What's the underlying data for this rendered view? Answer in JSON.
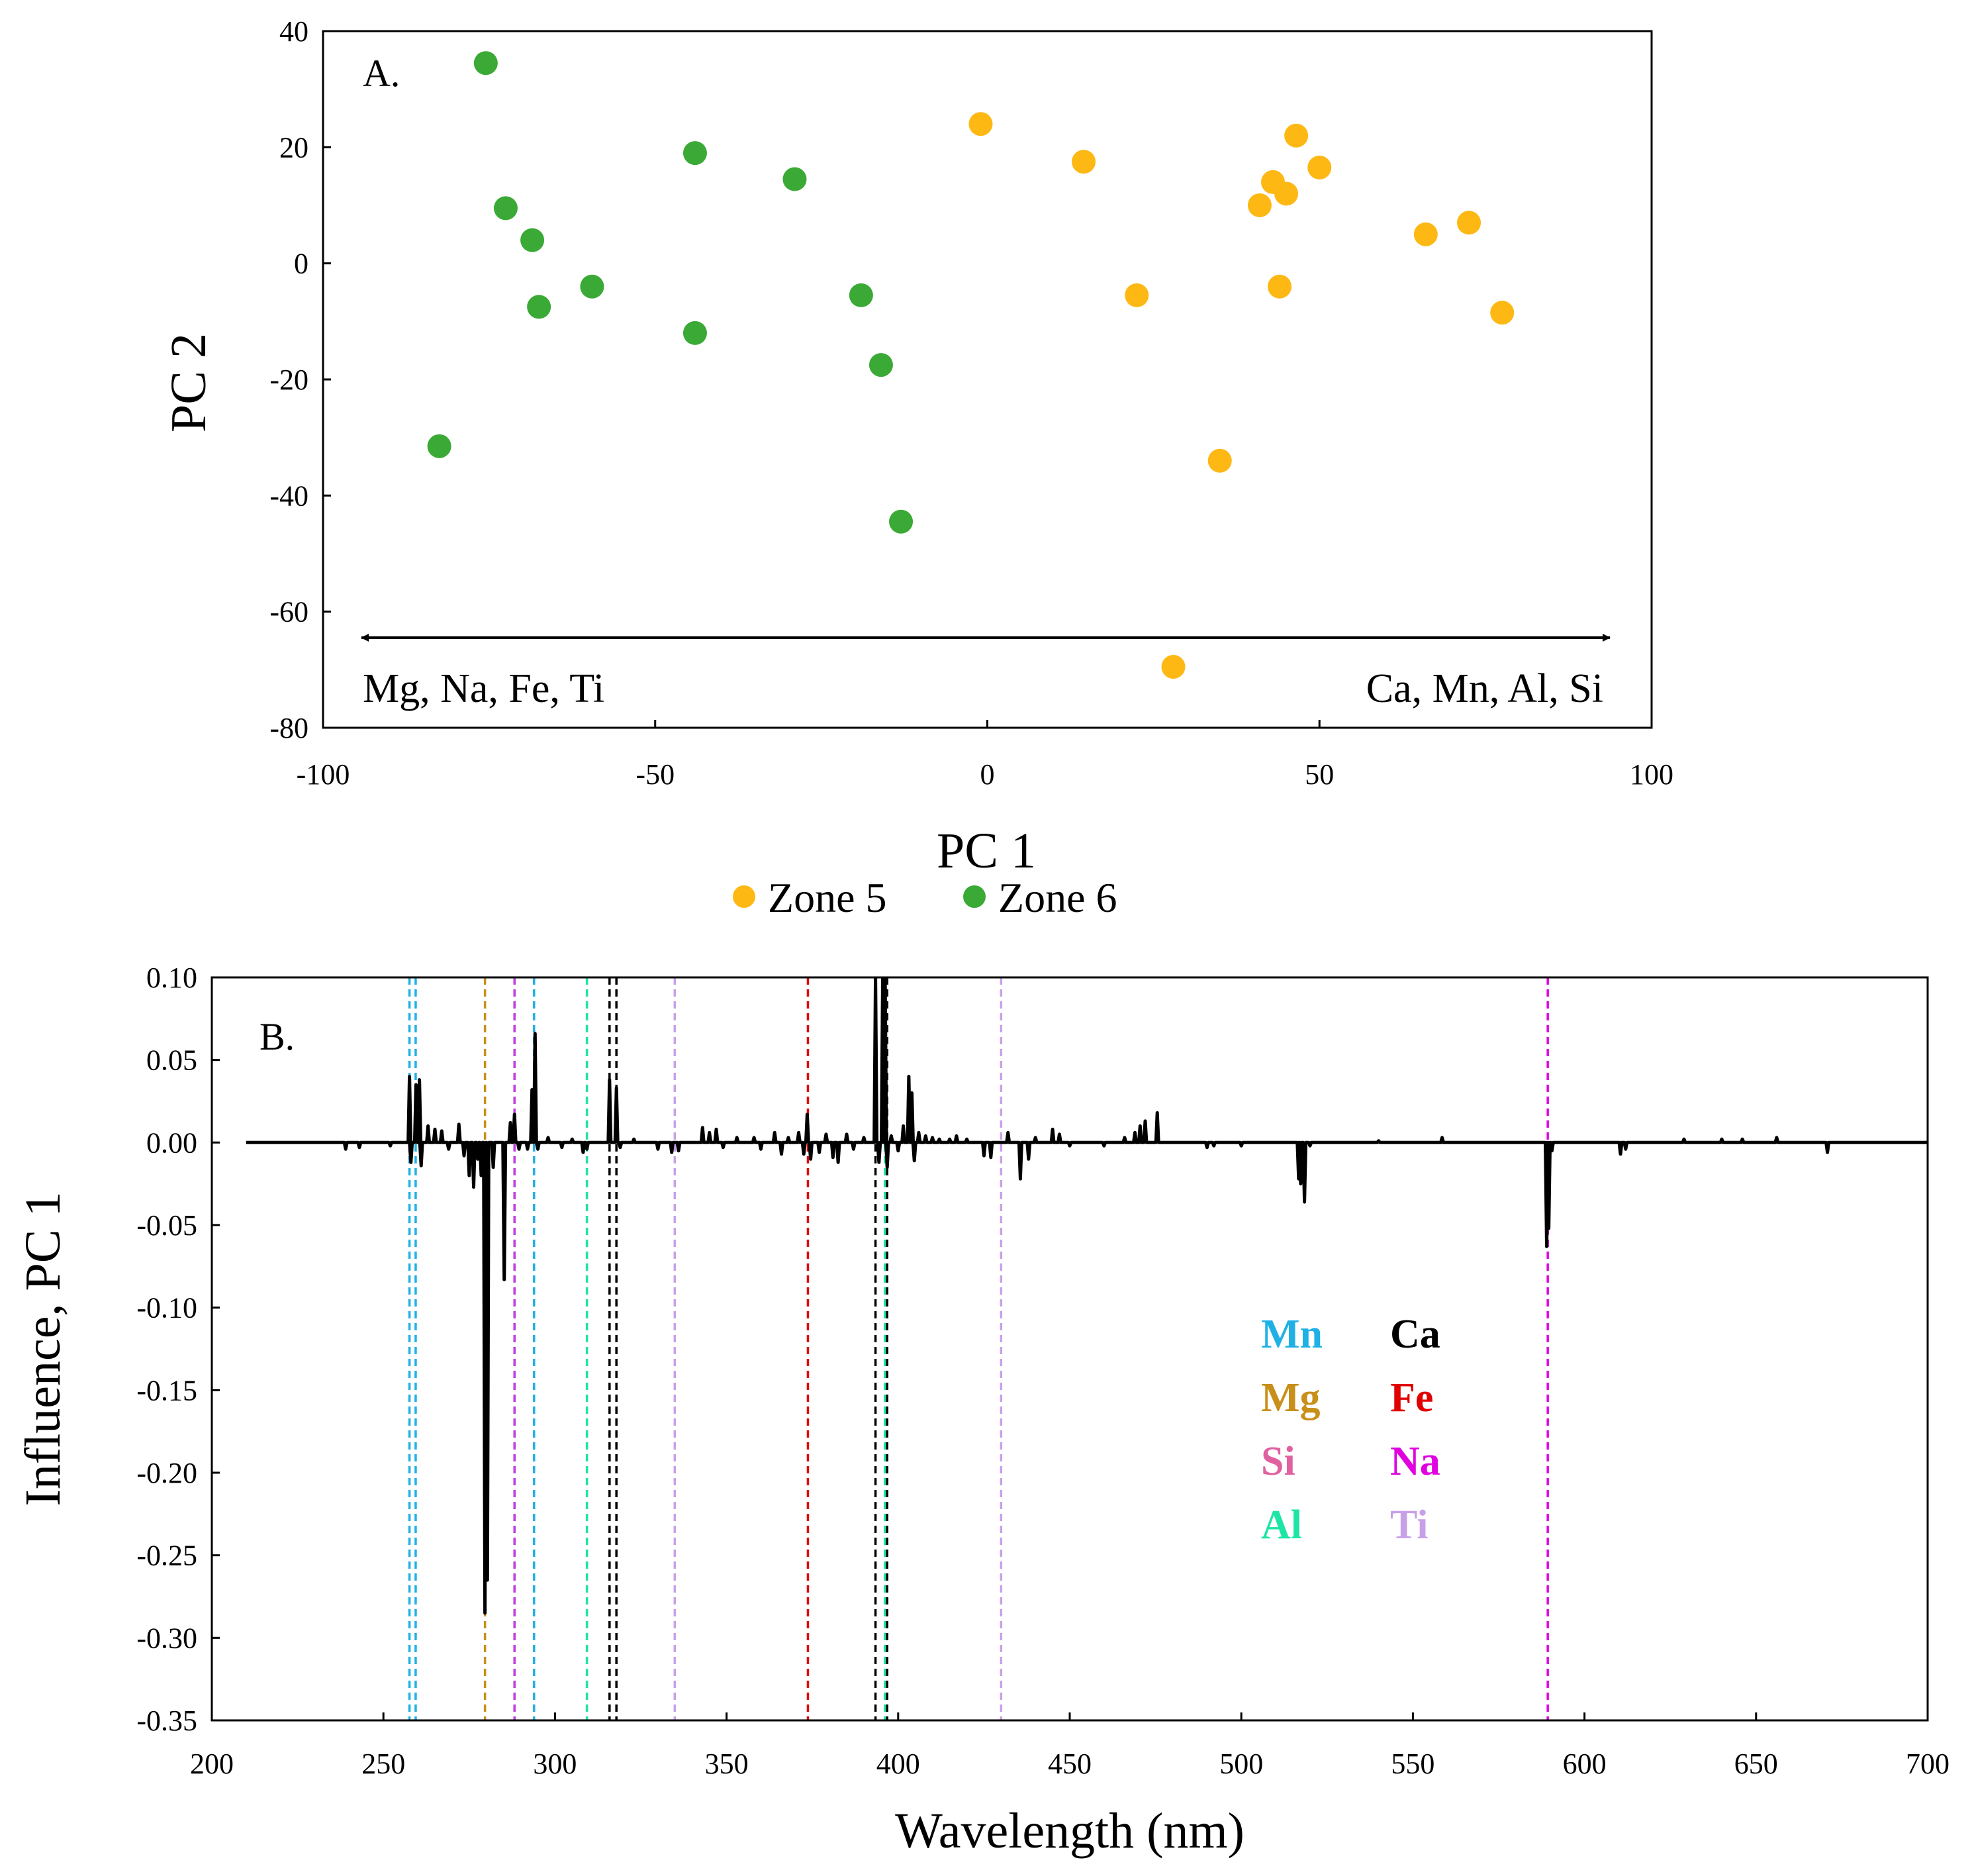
{
  "chart_data": [
    {
      "type": "scatter",
      "panel_label": "A.",
      "xlabel": "PC 1",
      "ylabel": "PC 2",
      "xlim": [
        -100,
        100
      ],
      "ylim": [
        -80,
        40
      ],
      "xticks": [
        -100,
        -50,
        0,
        50,
        100
      ],
      "yticks": [
        40,
        20,
        0,
        -20,
        -40,
        -60,
        -80
      ],
      "xtick_labels": [
        "-100",
        "-50",
        "0",
        "50",
        "100"
      ],
      "ytick_labels": [
        "40",
        "20",
        "0",
        "-20",
        "-40",
        "-60",
        "-80"
      ],
      "annotation_left": "Mg, Na, Fe, Ti",
      "annotation_right": "Ca, Mn, Al, Si",
      "legend": [
        {
          "name": "Zone 5",
          "color": "#FDB813"
        },
        {
          "name": "Zone 6",
          "color": "#3AA935"
        }
      ],
      "series": [
        {
          "name": "Zone 5",
          "color": "#FDB813",
          "points": [
            [
              -1,
              24
            ],
            [
              14.5,
              17.5
            ],
            [
              22.5,
              -5.5
            ],
            [
              28,
              -69.5
            ],
            [
              35,
              -34
            ],
            [
              41,
              10
            ],
            [
              43,
              14
            ],
            [
              44,
              -4
            ],
            [
              45,
              12
            ],
            [
              46.5,
              22
            ],
            [
              50,
              16.5
            ],
            [
              66,
              5
            ],
            [
              72.5,
              7
            ],
            [
              77.5,
              -8.5
            ]
          ]
        },
        {
          "name": "Zone 6",
          "color": "#3AA935",
          "points": [
            [
              -82.5,
              -31.5
            ],
            [
              -75.5,
              34.5
            ],
            [
              -72.5,
              9.5
            ],
            [
              -68.5,
              4
            ],
            [
              -67.5,
              -7.5
            ],
            [
              -59.5,
              -4
            ],
            [
              -44,
              19
            ],
            [
              -44,
              -12
            ],
            [
              -29,
              14.5
            ],
            [
              -19,
              -5.5
            ],
            [
              -16,
              -17.5
            ],
            [
              -13,
              -44.5
            ]
          ]
        }
      ]
    },
    {
      "type": "line",
      "panel_label": "B.",
      "xlabel": "Wavelength (nm)",
      "ylabel": "Influence, PC 1",
      "xlim": [
        200,
        700
      ],
      "ylim": [
        -0.35,
        0.1
      ],
      "xticks": [
        200,
        250,
        300,
        350,
        400,
        450,
        500,
        550,
        600,
        650,
        700
      ],
      "yticks": [
        0.1,
        0.05,
        0,
        -0.05,
        -0.1,
        -0.15,
        -0.2,
        -0.25,
        -0.3,
        -0.35
      ],
      "xtick_labels": [
        "200",
        "250",
        "300",
        "350",
        "400",
        "450",
        "500",
        "550",
        "600",
        "650",
        "700"
      ],
      "ytick_labels": [
        "0.10",
        "0.05",
        "0.00",
        "-0.05",
        "-0.10",
        "-0.15",
        "-0.20",
        "-0.25",
        "-0.30",
        "-0.35"
      ],
      "spectrum_start": 210,
      "spectrum_end": 700,
      "peaks": [
        [
          239,
          -0.004
        ],
        [
          243,
          -0.003
        ],
        [
          252,
          -0.002
        ],
        [
          257.6,
          0.04
        ],
        [
          258,
          -0.012
        ],
        [
          259.5,
          0.035
        ],
        [
          260.5,
          0.038
        ],
        [
          261,
          -0.014
        ],
        [
          263,
          0.01
        ],
        [
          265,
          0.008
        ],
        [
          267,
          0.007
        ],
        [
          269,
          -0.004
        ],
        [
          272,
          0.011
        ],
        [
          273.5,
          -0.008
        ],
        [
          275,
          -0.02
        ],
        [
          276.3,
          -0.027
        ],
        [
          277.5,
          -0.01
        ],
        [
          278.5,
          -0.02
        ],
        [
          279.6,
          -0.285
        ],
        [
          280.3,
          -0.265
        ],
        [
          282,
          -0.015
        ],
        [
          285.2,
          -0.083
        ],
        [
          287,
          0.012
        ],
        [
          288.2,
          0.017
        ],
        [
          289.5,
          -0.004
        ],
        [
          292,
          -0.004
        ],
        [
          293.3,
          0.032
        ],
        [
          294.2,
          0.066
        ],
        [
          295,
          -0.004
        ],
        [
          298,
          0.003
        ],
        [
          302,
          -0.003
        ],
        [
          305,
          0.002
        ],
        [
          308.2,
          -0.006
        ],
        [
          309.3,
          -0.004
        ],
        [
          315.9,
          0.038
        ],
        [
          317.9,
          0.033
        ],
        [
          319,
          -0.003
        ],
        [
          323,
          0.002
        ],
        [
          330,
          -0.004
        ],
        [
          334,
          -0.006
        ],
        [
          336,
          -0.005
        ],
        [
          343,
          0.009
        ],
        [
          345,
          0.006
        ],
        [
          347,
          0.008
        ],
        [
          349,
          -0.003
        ],
        [
          353,
          0.003
        ],
        [
          358,
          0.003
        ],
        [
          360,
          -0.004
        ],
        [
          364,
          0.006
        ],
        [
          366,
          -0.007
        ],
        [
          368,
          0.003
        ],
        [
          371,
          0.006
        ],
        [
          372.5,
          -0.007
        ],
        [
          373.5,
          0.017
        ],
        [
          374.5,
          -0.01
        ],
        [
          377,
          -0.006
        ],
        [
          379,
          0.005
        ],
        [
          381,
          -0.009
        ],
        [
          382.5,
          -0.012
        ],
        [
          385,
          0.005
        ],
        [
          387,
          -0.004
        ],
        [
          390,
          0.003
        ],
        [
          393.4,
          0.1
        ],
        [
          394.4,
          -0.012
        ],
        [
          395.5,
          0.1
        ],
        [
          396.2,
          0.1
        ],
        [
          396.8,
          -0.015
        ],
        [
          398,
          0.004
        ],
        [
          400,
          -0.005
        ],
        [
          401.5,
          0.01
        ],
        [
          403.1,
          0.04
        ],
        [
          404,
          0.03
        ],
        [
          404.7,
          -0.011
        ],
        [
          406,
          0.006
        ],
        [
          408,
          0.004
        ],
        [
          410,
          0.003
        ],
        [
          412,
          0.002
        ],
        [
          415,
          0.002
        ],
        [
          417,
          0.004
        ],
        [
          420,
          0.002
        ],
        [
          425,
          -0.008
        ],
        [
          427,
          -0.009
        ],
        [
          432,
          0.006
        ],
        [
          435.6,
          -0.022
        ],
        [
          438,
          -0.01
        ],
        [
          440,
          0.003
        ],
        [
          445,
          0.008
        ],
        [
          447,
          0.005
        ],
        [
          450,
          -0.002
        ],
        [
          460,
          -0.002
        ],
        [
          466,
          0.003
        ],
        [
          469,
          0.006
        ],
        [
          470.5,
          0.01
        ],
        [
          472,
          0.013
        ],
        [
          475.5,
          0.018
        ],
        [
          490,
          -0.003
        ],
        [
          492,
          -0.002
        ],
        [
          500,
          -0.002
        ],
        [
          516.7,
          -0.022
        ],
        [
          517.3,
          -0.025
        ],
        [
          518.4,
          -0.036
        ],
        [
          520,
          -0.002
        ],
        [
          540,
          0.001
        ],
        [
          558.5,
          0.003
        ],
        [
          588.99,
          -0.063
        ],
        [
          589.59,
          -0.052
        ],
        [
          590.5,
          -0.005
        ],
        [
          610.5,
          -0.007
        ],
        [
          612,
          -0.004
        ],
        [
          629,
          0.002
        ],
        [
          640,
          0.002
        ],
        [
          646,
          0.002
        ],
        [
          656,
          0.003
        ],
        [
          670.8,
          -0.006
        ]
      ],
      "element_lines": [
        {
          "element": "Mn",
          "color": "#1FB1E6",
          "x": [
            257.6,
            259.4,
            293.9
          ]
        },
        {
          "element": "Mg",
          "color": "#C8901A",
          "x": [
            279.6
          ]
        },
        {
          "element": "Si",
          "color": "#E060A0",
          "x": [
            288.2
          ]
        },
        {
          "element": "Al",
          "color": "#1DE5A5",
          "x": [
            309.3,
            396.15
          ]
        },
        {
          "element": "Ca",
          "color": "#000000",
          "x": [
            315.9,
            317.9,
            393.4,
            396.8
          ]
        },
        {
          "element": "Fe",
          "color": "#E00000",
          "x": [
            373.7
          ]
        },
        {
          "element": "Na",
          "color": "#E000E0",
          "x": [
            589.3
          ]
        },
        {
          "element": "Ti",
          "color": "#C8A0E8",
          "x": [
            334.9,
            430
          ]
        }
      ],
      "line_overlays": [
        {
          "x": 288.2,
          "color": "#C040E0"
        }
      ],
      "element_legend": [
        {
          "label": "Mn",
          "color": "#1FB1E6"
        },
        {
          "label": "Ca",
          "color": "#000000"
        },
        {
          "label": "Mg",
          "color": "#C8901A"
        },
        {
          "label": "Fe",
          "color": "#E00000"
        },
        {
          "label": "Si",
          "color": "#E060A0"
        },
        {
          "label": "Na",
          "color": "#E000E0"
        },
        {
          "label": "Al",
          "color": "#1DE5A5"
        },
        {
          "label": "Ti",
          "color": "#C8A0E8"
        }
      ]
    }
  ]
}
